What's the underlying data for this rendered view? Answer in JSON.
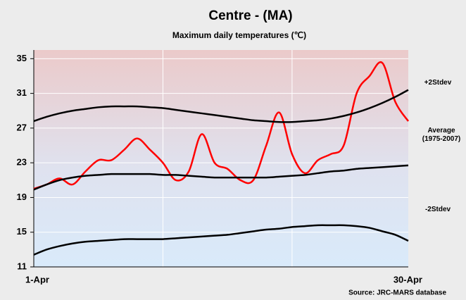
{
  "chart_data": {
    "type": "line",
    "title": "Centre - (MA)",
    "subtitle": "Maximum daily temperatures (℃)",
    "source": "Source: JRC-MARS database",
    "categories": [
      "1-Apr",
      null,
      null,
      null,
      null,
      null,
      null,
      null,
      null,
      null,
      null,
      null,
      null,
      null,
      null,
      null,
      null,
      null,
      null,
      null,
      null,
      null,
      null,
      null,
      null,
      null,
      null,
      null,
      null,
      "30-Apr"
    ],
    "series": [
      {
        "color": "#ff0000",
        "values": [
          20,
          20.5,
          21.2,
          20.5,
          22,
          23.3,
          23.3,
          24.5,
          25.8,
          24.5,
          23,
          21,
          22,
          26.3,
          23,
          22.3,
          21,
          21,
          25,
          28.8,
          24,
          21.8,
          23.3,
          24,
          25,
          31,
          33,
          34.5,
          30,
          27.8
        ]
      },
      {
        "name": "+2Stdev",
        "color": "#000000",
        "values": [
          27.8,
          28.3,
          28.7,
          29.0,
          29.2,
          29.4,
          29.5,
          29.5,
          29.5,
          29.4,
          29.3,
          29.1,
          28.9,
          28.7,
          28.5,
          28.3,
          28.1,
          27.9,
          27.8,
          27.7,
          27.7,
          27.8,
          27.9,
          28.1,
          28.4,
          28.8,
          29.3,
          29.9,
          30.6,
          31.4
        ]
      },
      {
        "name": "Average (1975-2007)",
        "color": "#000000",
        "values": [
          19.9,
          20.5,
          21.0,
          21.3,
          21.5,
          21.6,
          21.7,
          21.7,
          21.7,
          21.7,
          21.6,
          21.6,
          21.5,
          21.4,
          21.3,
          21.3,
          21.3,
          21.3,
          21.3,
          21.4,
          21.5,
          21.6,
          21.8,
          22.0,
          22.1,
          22.3,
          22.4,
          22.5,
          22.6,
          22.7
        ]
      },
      {
        "name": "-2Stdev",
        "color": "#000000",
        "values": [
          12.4,
          13.0,
          13.4,
          13.7,
          13.9,
          14.0,
          14.1,
          14.2,
          14.2,
          14.2,
          14.2,
          14.3,
          14.4,
          14.5,
          14.6,
          14.7,
          14.9,
          15.1,
          15.3,
          15.4,
          15.6,
          15.7,
          15.8,
          15.8,
          15.8,
          15.7,
          15.5,
          15.1,
          14.7,
          14.0
        ]
      }
    ],
    "ylim": [
      11,
      36
    ],
    "yticks": [
      11,
      15,
      19,
      23,
      27,
      31,
      35
    ],
    "grid": true
  }
}
